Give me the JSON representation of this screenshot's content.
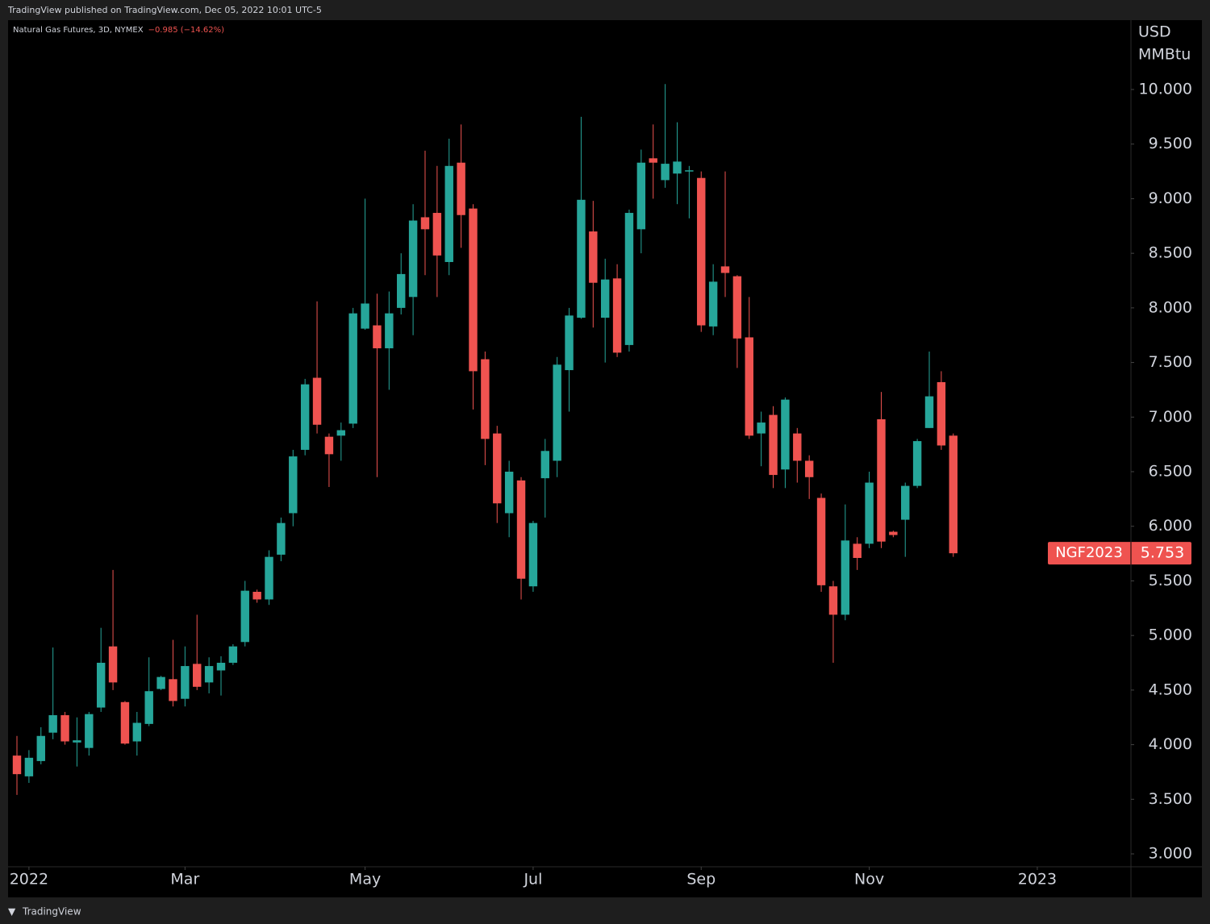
{
  "header": {
    "text": "TradingView published on TradingView.com, Dec 05, 2022 10:01 UTC-5"
  },
  "footer": {
    "text": "TradingView"
  },
  "chart_data": {
    "type": "candlestick",
    "title": "Natural Gas Futures, 3D, NYMEX",
    "change": "−0.985 (−14.62%)",
    "y_axis_label": [
      "USD",
      "MMBtu"
    ],
    "up_color": "#26a69a",
    "down_color": "#ef5350",
    "categories": [
      null,
      null,
      null,
      null,
      null,
      null,
      null,
      null,
      null,
      null,
      null,
      null,
      null,
      null,
      null,
      null,
      null,
      null,
      null,
      null,
      null,
      null,
      null,
      null,
      null,
      null,
      null,
      null,
      null,
      null,
      null,
      null,
      null,
      null,
      null,
      null,
      null,
      null,
      null,
      null,
      null,
      null,
      null,
      null,
      null,
      null,
      null,
      null,
      null,
      null,
      null,
      null,
      null,
      null,
      null,
      null,
      null,
      null,
      null,
      null,
      null,
      null,
      null,
      null,
      null,
      null,
      null,
      null,
      null,
      null,
      null,
      null,
      null,
      null,
      null,
      null,
      null,
      null,
      null
    ],
    "open": [
      3.9,
      3.71,
      3.85,
      4.11,
      4.27,
      4.02,
      3.97,
      4.34,
      4.9,
      4.39,
      4.03,
      4.19,
      4.51,
      4.6,
      4.42,
      4.74,
      4.57,
      4.68,
      4.75,
      4.94,
      5.4,
      5.33,
      5.74,
      6.12,
      6.7,
      7.36,
      6.82,
      6.83,
      6.94,
      7.81,
      7.84,
      7.63,
      8.0,
      8.1,
      8.83,
      8.87,
      8.42,
      9.33,
      8.91,
      7.53,
      6.85,
      6.12,
      6.42,
      5.45,
      6.44,
      6.6,
      7.43,
      7.91,
      8.7,
      7.91,
      8.27,
      7.66,
      8.72,
      9.37,
      9.17,
      9.23,
      9.25,
      9.19,
      7.83,
      8.38,
      8.29,
      7.73,
      6.85,
      7.02,
      6.52,
      6.85,
      6.6,
      6.26,
      5.45,
      5.19,
      5.84,
      5.84,
      6.98,
      5.95,
      6.06,
      6.37,
      6.9,
      7.32,
      6.83
    ],
    "high": [
      4.08,
      3.95,
      4.16,
      4.89,
      4.3,
      4.25,
      4.3,
      5.07,
      5.6,
      4.4,
      4.3,
      4.8,
      4.63,
      4.96,
      4.9,
      5.19,
      4.8,
      4.81,
      4.92,
      5.5,
      5.42,
      5.78,
      6.08,
      6.7,
      7.35,
      8.06,
      6.85,
      6.95,
      8.0,
      9.0,
      8.13,
      8.15,
      8.5,
      8.95,
      9.44,
      9.3,
      9.55,
      9.68,
      8.95,
      7.6,
      6.92,
      6.6,
      6.45,
      6.05,
      6.8,
      7.55,
      8.0,
      9.75,
      8.98,
      8.45,
      8.4,
      8.9,
      9.45,
      9.68,
      10.05,
      9.7,
      9.3,
      9.25,
      8.4,
      9.25,
      8.3,
      8.1,
      7.05,
      7.1,
      7.18,
      6.9,
      6.65,
      6.3,
      5.5,
      6.2,
      5.9,
      6.5,
      7.23,
      5.96,
      6.4,
      6.8,
      7.6,
      7.42,
      6.85
    ],
    "low": [
      3.54,
      3.65,
      3.82,
      4.05,
      4.0,
      3.8,
      3.9,
      4.3,
      4.5,
      4.0,
      3.9,
      4.17,
      4.5,
      4.35,
      4.35,
      4.5,
      4.47,
      4.45,
      4.73,
      4.9,
      5.3,
      5.28,
      5.68,
      6.0,
      6.65,
      6.85,
      6.36,
      6.6,
      6.9,
      7.8,
      6.45,
      7.25,
      7.94,
      7.75,
      8.3,
      8.1,
      8.3,
      8.55,
      7.07,
      6.56,
      6.03,
      5.9,
      5.33,
      5.4,
      6.08,
      6.45,
      7.05,
      7.9,
      7.82,
      7.5,
      7.55,
      7.6,
      8.5,
      9.0,
      9.1,
      8.95,
      8.82,
      7.78,
      7.75,
      8.1,
      7.45,
      6.8,
      6.55,
      6.35,
      6.35,
      6.4,
      6.25,
      5.4,
      4.75,
      5.14,
      5.6,
      5.8,
      5.8,
      5.9,
      5.72,
      6.35,
      6.9,
      6.7,
      5.72
    ],
    "close": [
      3.73,
      3.88,
      4.08,
      4.27,
      4.03,
      4.04,
      4.28,
      4.75,
      4.57,
      4.01,
      4.2,
      4.49,
      4.62,
      4.4,
      4.72,
      4.53,
      4.72,
      4.75,
      4.9,
      5.41,
      5.33,
      5.72,
      6.03,
      6.64,
      7.3,
      6.93,
      6.66,
      6.88,
      7.95,
      8.04,
      7.63,
      7.95,
      8.31,
      8.8,
      8.72,
      8.48,
      9.3,
      8.85,
      7.42,
      6.8,
      6.21,
      6.5,
      5.52,
      6.03,
      6.69,
      7.48,
      7.93,
      8.99,
      8.23,
      8.26,
      7.59,
      8.87,
      9.33,
      9.33,
      9.32,
      9.34,
      9.26,
      7.84,
      8.24,
      8.32,
      7.72,
      6.83,
      6.95,
      6.47,
      7.16,
      6.6,
      6.45,
      5.46,
      5.19,
      5.87,
      5.71,
      6.4,
      5.86,
      5.92,
      6.37,
      6.78,
      7.19,
      6.74,
      5.753
    ],
    "last_price_name": "NGF2023",
    "last_price": 5.753,
    "xlim": [
      -0.74,
      92.8
    ],
    "xticks": [
      {
        "value": 1,
        "label": "2022"
      },
      {
        "value": 14,
        "label": "Mar"
      },
      {
        "value": 29,
        "label": "May"
      },
      {
        "value": 43,
        "label": "Jul"
      },
      {
        "value": 57,
        "label": "Sep"
      },
      {
        "value": 71,
        "label": "Nov"
      },
      {
        "value": 85,
        "label": "2023"
      }
    ],
    "ylim": [
      2.882,
      10.635
    ],
    "yticks": [
      {
        "value": 3,
        "label": "3.000"
      },
      {
        "value": 3.5,
        "label": "3.500"
      },
      {
        "value": 4,
        "label": "4.000"
      },
      {
        "value": 4.5,
        "label": "4.500"
      },
      {
        "value": 5,
        "label": "5.000"
      },
      {
        "value": 5.5,
        "label": "5.500"
      },
      {
        "value": 6,
        "label": "6.000"
      },
      {
        "value": 6.5,
        "label": "6.500"
      },
      {
        "value": 7,
        "label": "7.000"
      },
      {
        "value": 7.5,
        "label": "7.500"
      },
      {
        "value": 8,
        "label": "8.000"
      },
      {
        "value": 8.5,
        "label": "8.500"
      },
      {
        "value": 9,
        "label": "9.000"
      },
      {
        "value": 9.5,
        "label": "9.500"
      },
      {
        "value": 10,
        "label": "10.000"
      }
    ]
  }
}
